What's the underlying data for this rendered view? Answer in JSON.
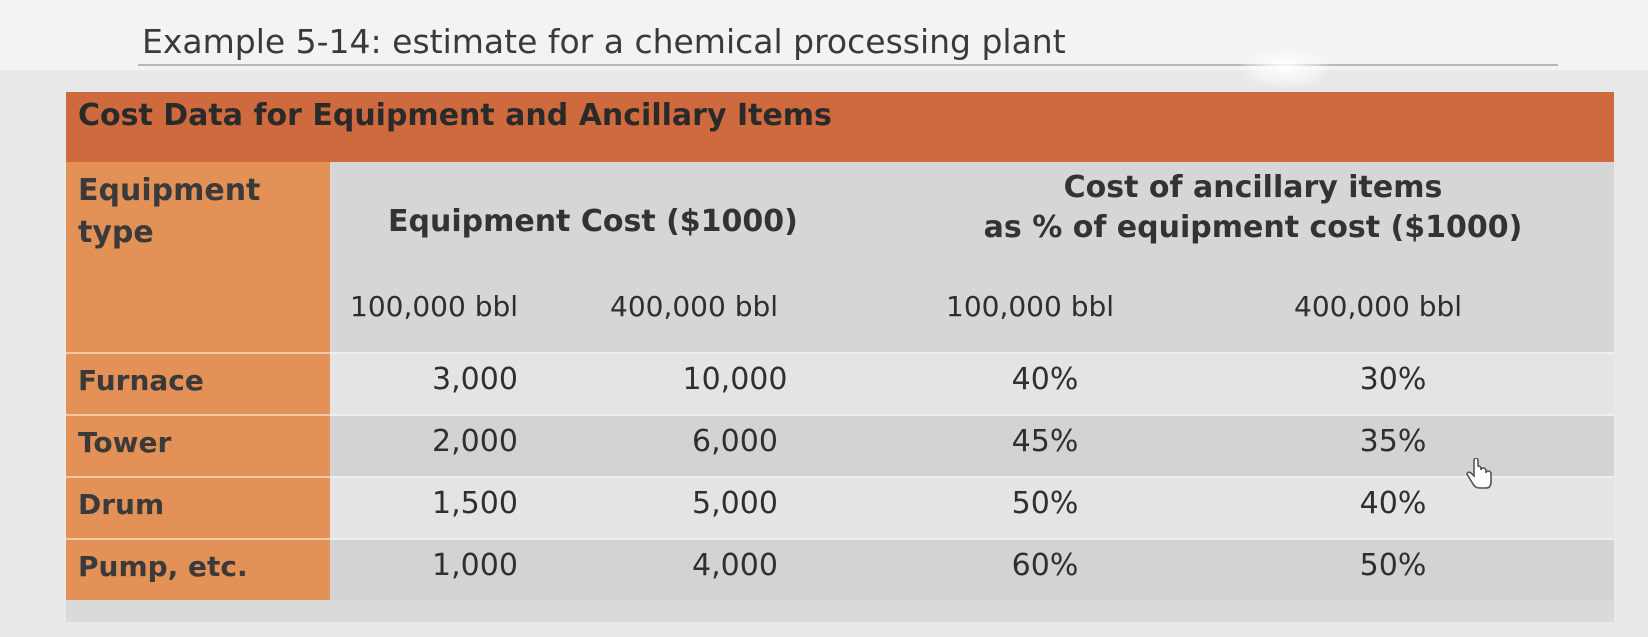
{
  "page": {
    "example_title": "Example 5-14: estimate for a chemical processing plant"
  },
  "table": {
    "banner": "Cost Data for Equipment and Ancillary Items",
    "type_header_line1": "Equipment",
    "type_header_line2": "type",
    "equipment_cost_header": "Equipment Cost ($1000)",
    "ancillary_header_line1": "Cost of ancillary items",
    "ancillary_header_line2": "as % of equipment cost ($1000)",
    "sub_headers": [
      "100,000 bbl",
      "400,000 bbl",
      "100,000 bbl",
      "400,000 bbl"
    ],
    "rows": [
      {
        "type": "Furnace",
        "values": [
          "3,000",
          "10,000",
          "40%",
          "30%"
        ]
      },
      {
        "type": "Tower",
        "values": [
          "2,000",
          "6,000",
          "45%",
          "35%"
        ]
      },
      {
        "type": "Drum",
        "values": [
          "1,500",
          "5,000",
          "50%",
          "40%"
        ]
      },
      {
        "type": "Pump, etc.",
        "values": [
          "1,000",
          "4,000",
          "60%",
          "50%"
        ]
      }
    ]
  },
  "icons": {
    "cursor": "hand-pointer-icon"
  },
  "colors": {
    "banner": "#cf6a3e",
    "type_column": "#e39157",
    "grid": "#dadada"
  }
}
